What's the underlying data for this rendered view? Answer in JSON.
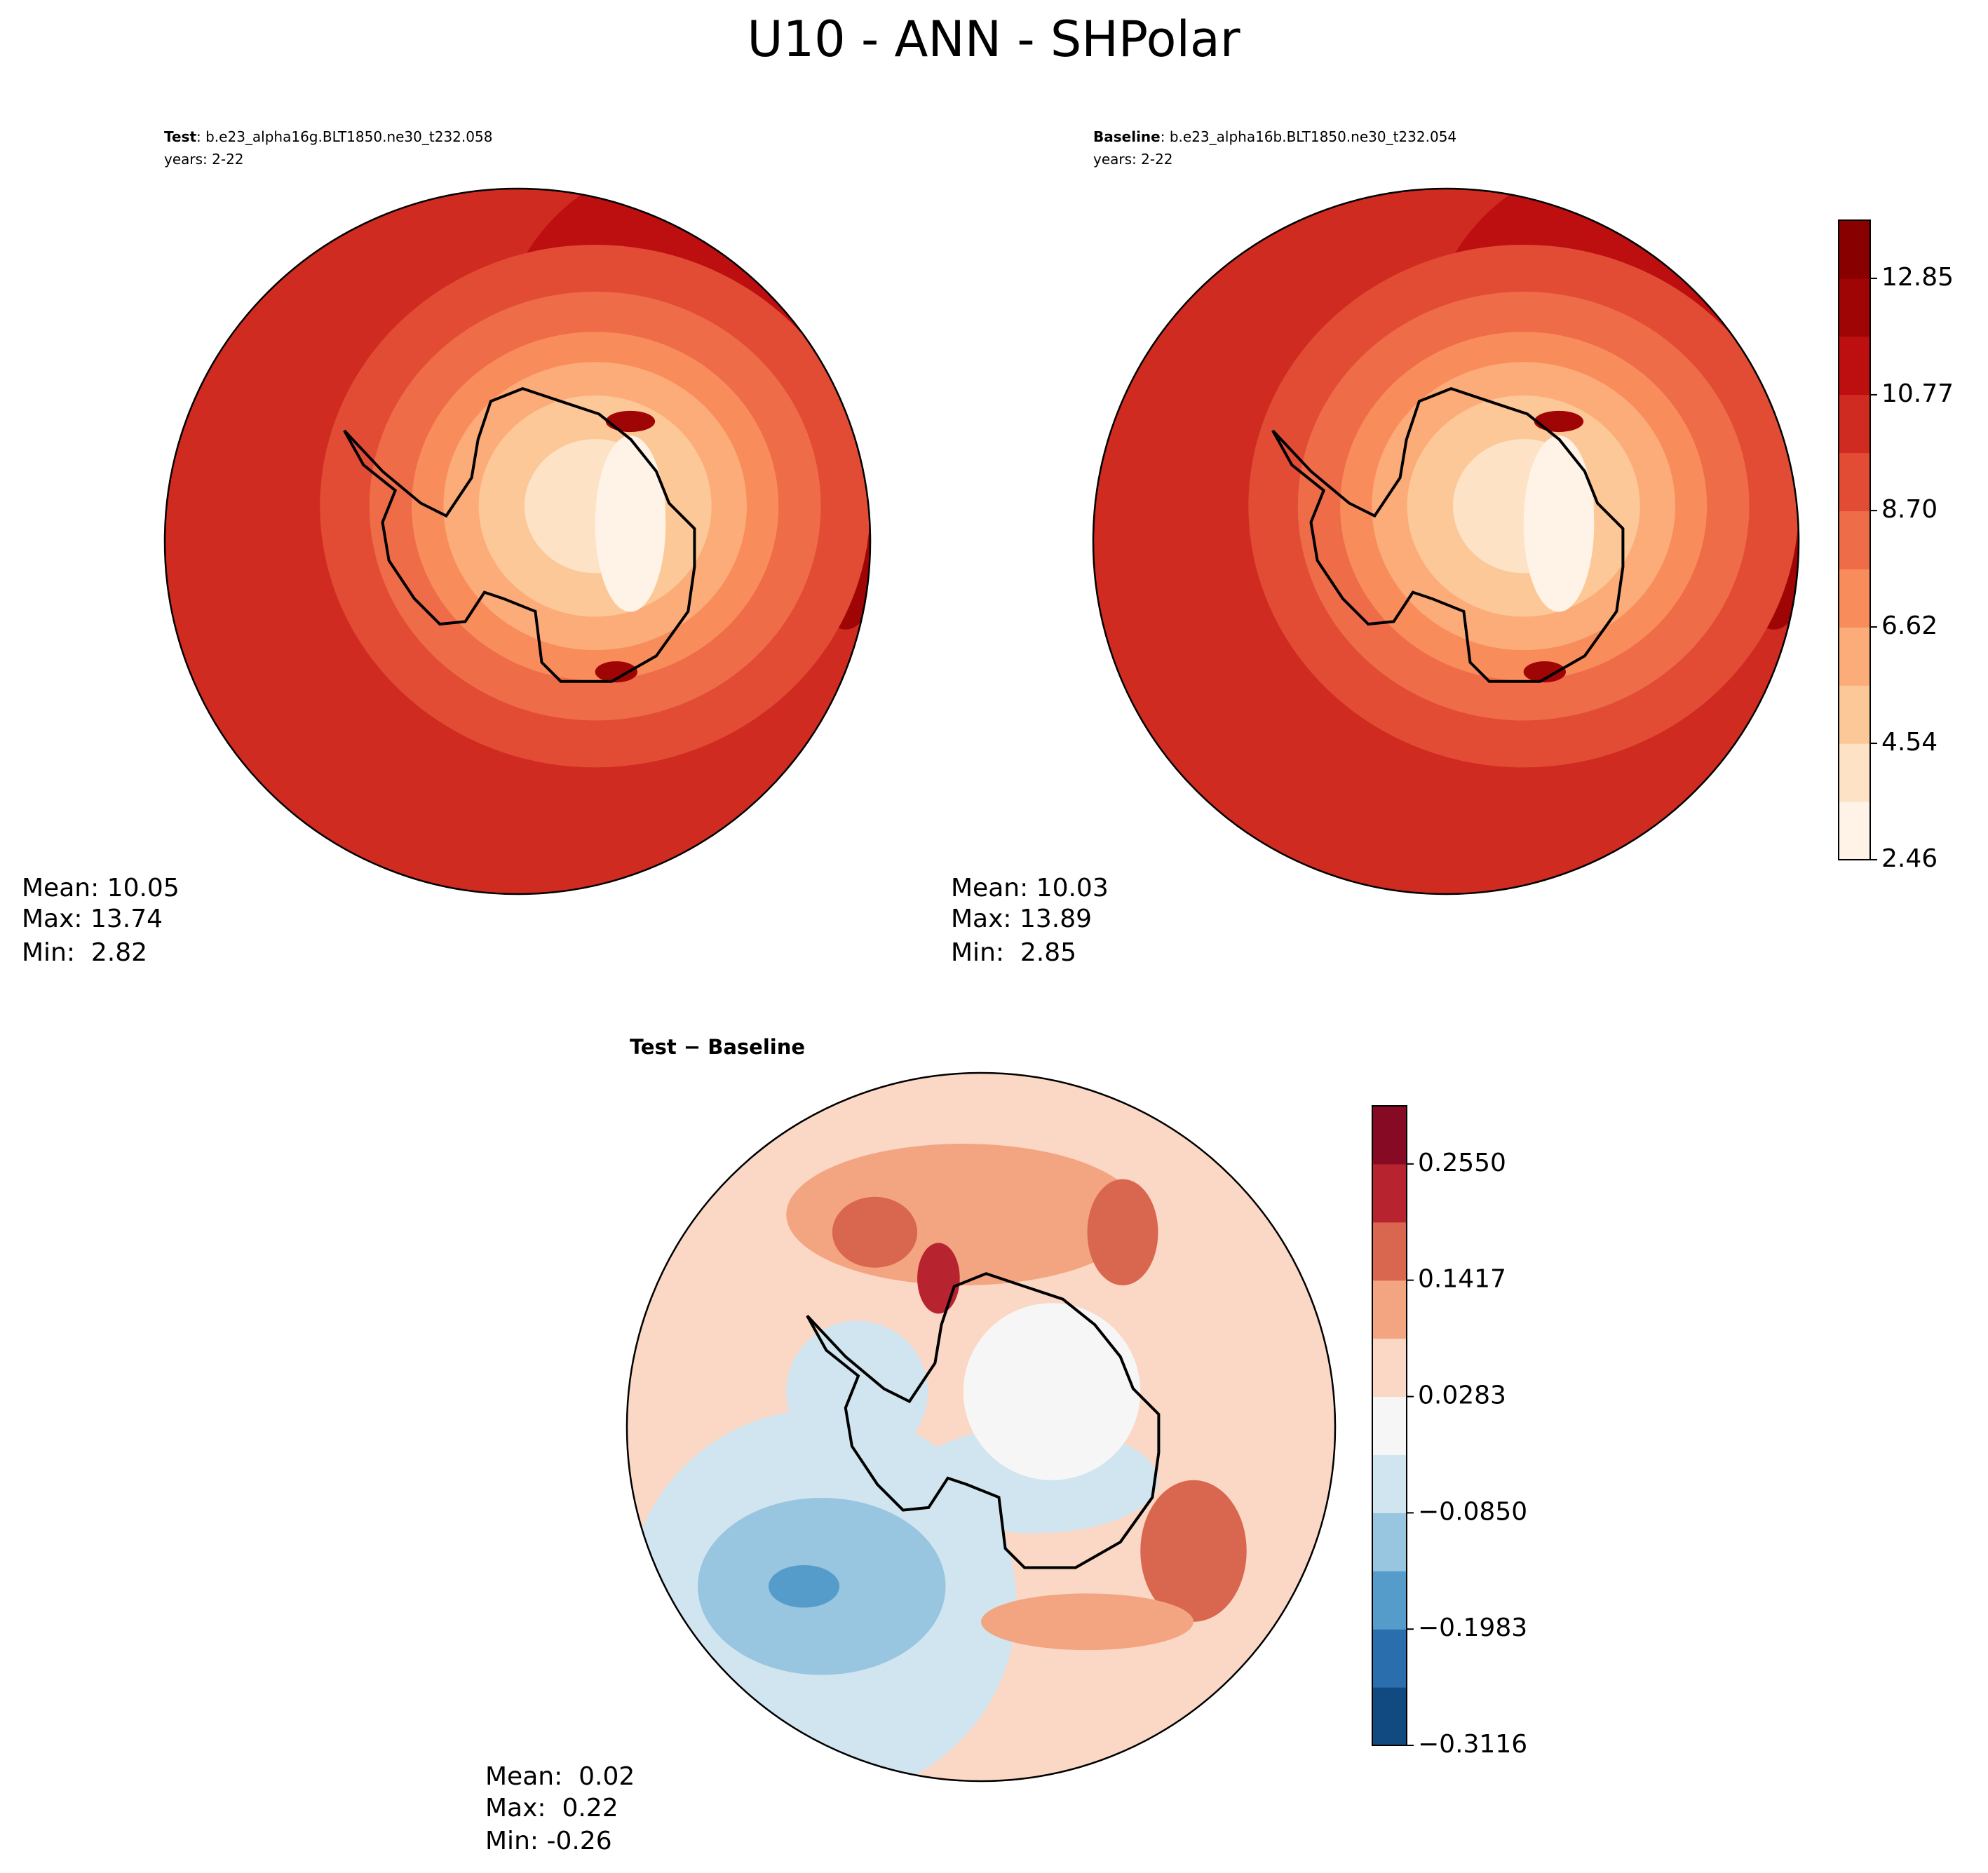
{
  "title": "U10 - ANN - SHPolar",
  "panels": [
    {
      "label": "Test",
      "case": ": b.e23_alpha16g.BLT1850.ne30_t232.058",
      "years": "years: 2-22",
      "stats": [
        "Mean: 10.05",
        "Max: 13.74",
        "Min:  2.82"
      ]
    },
    {
      "label": "Baseline",
      "case": ": b.e23_alpha16b.BLT1850.ne30_t232.054",
      "years": "years: 2-22",
      "stats": [
        "Mean: 10.03",
        "Max: 13.89",
        "Min:  2.85"
      ]
    },
    {
      "label": "Test − Baseline",
      "stats": [
        "Mean:  0.02",
        "Max:  0.22",
        "Min: -0.26"
      ]
    }
  ],
  "colorbars": [
    {
      "lim": [
        2.46,
        13.89
      ],
      "ticks": [
        2.46,
        4.54,
        6.62,
        {
          "value": 8.7,
          "label": "8.70"
        },
        10.77,
        12.85
      ],
      "colors": [
        "#fef3e6",
        "#fde2c6",
        "#fdc897",
        "#fcac79",
        "#f88d5b",
        "#ef6c48",
        "#e24c35",
        "#d02b21",
        "#bd0f10",
        "#a00505",
        "#880000"
      ]
    },
    {
      "lim": [
        -0.3116,
        0.3116
      ],
      "ticks": [
        {
          "value": -0.3116,
          "label": "−0.3116"
        },
        {
          "value": -0.1983,
          "label": "−0.1983"
        },
        {
          "value": -0.085,
          "label": "−0.0850"
        },
        0.0283,
        0.1417,
        {
          "value": 0.255,
          "label": "0.2550"
        }
      ],
      "colors": [
        "#114a80",
        "#2b6ead",
        "#559cca",
        "#98c5df",
        "#d1e5f0",
        "#f6f6f6",
        "#fbd8c5",
        "#f3a582",
        "#d9664f",
        "#b7242f",
        "#870a24"
      ]
    }
  ]
}
